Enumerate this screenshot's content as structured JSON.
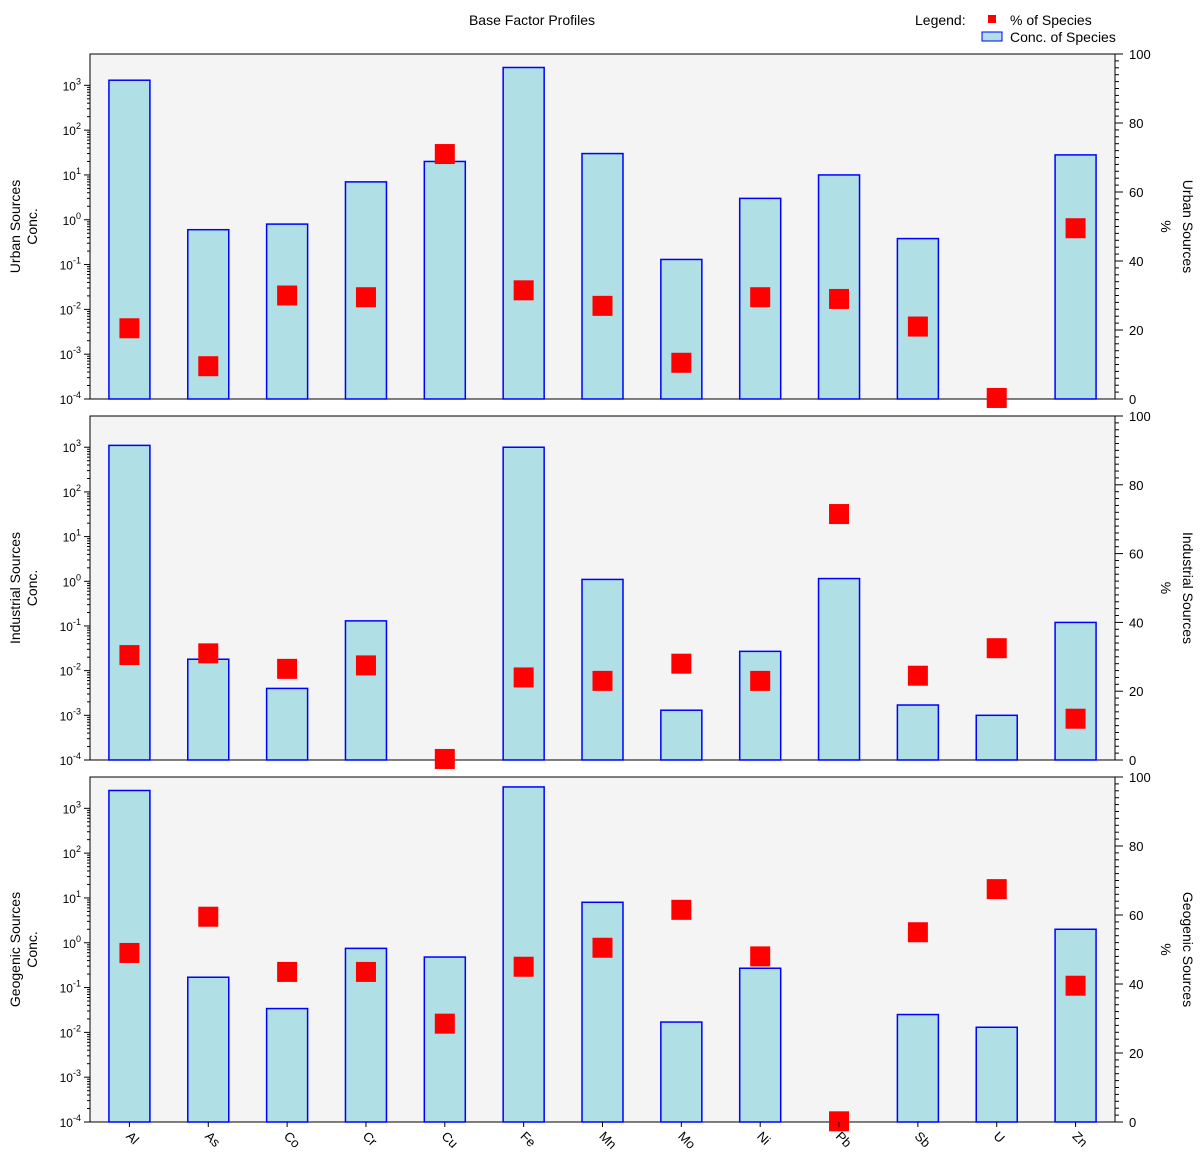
{
  "chart_data": {
    "type": "bar",
    "title": "Base Factor Profiles",
    "legend": {
      "label": "Legend:",
      "placement": "top-right",
      "entries": [
        {
          "name": "% of Species",
          "marker": "square",
          "color": "#ff0000"
        },
        {
          "name": "Conc. of Species",
          "marker": "bar",
          "color": "#b0dfe5",
          "edge": "#0000ff"
        }
      ]
    },
    "categories": [
      "Al",
      "As",
      "Co",
      "Cr",
      "Cu",
      "Fe",
      "Mn",
      "Mo",
      "Ni",
      "Pb",
      "Sb",
      "U",
      "Zn"
    ],
    "left_axis": {
      "scale": "log",
      "ylim": [
        0.0001,
        5000
      ],
      "ticks": [
        {
          "value": 0.0001,
          "base": "10",
          "exp": "-4"
        },
        {
          "value": 0.001,
          "base": "10",
          "exp": "-3"
        },
        {
          "value": 0.01,
          "base": "10",
          "exp": "-2"
        },
        {
          "value": 0.1,
          "base": "10",
          "exp": "-1"
        },
        {
          "value": 1,
          "base": "10",
          "exp": "0"
        },
        {
          "value": 10,
          "base": "10",
          "exp": "1"
        },
        {
          "value": 100,
          "base": "10",
          "exp": "2"
        },
        {
          "value": 1000,
          "base": "10",
          "exp": "3"
        }
      ]
    },
    "right_axis": {
      "scale": "linear",
      "ylim": [
        0,
        100
      ],
      "ticks": [
        "0",
        "20",
        "40",
        "60",
        "80",
        "100"
      ],
      "label": "%"
    },
    "panels": [
      {
        "name": "Urban Sources",
        "ylabel_left": [
          "Urban Sources",
          "Conc."
        ],
        "ylabel_right": "Urban Sources",
        "conc": [
          1300,
          0.6,
          0.8,
          7,
          20,
          2500,
          30,
          0.13,
          3,
          10,
          0.38,
          null,
          28
        ],
        "percent": [
          20.5,
          9.5,
          30,
          29.5,
          71,
          31.5,
          27,
          10.5,
          29.5,
          29,
          21,
          0.3,
          49.5
        ]
      },
      {
        "name": "Industrial Sources",
        "ylabel_left": [
          "Industrial Sources",
          "Conc."
        ],
        "ylabel_right": "Industrial Sources",
        "conc": [
          1100,
          0.018,
          0.004,
          0.13,
          null,
          1000,
          1.1,
          0.0013,
          0.027,
          1.15,
          0.0017,
          0.001,
          0.12
        ],
        "percent": [
          30.5,
          31,
          26.5,
          27.5,
          0.3,
          24,
          23,
          28,
          23,
          71.5,
          24.5,
          32.5,
          12
        ]
      },
      {
        "name": "Geogenic Sources",
        "ylabel_left": [
          "Geogenic Sources",
          "Conc."
        ],
        "ylabel_right": "Geogenic Sources",
        "conc": [
          2500,
          0.17,
          0.034,
          0.75,
          0.48,
          3000,
          8,
          0.017,
          0.27,
          null,
          0.025,
          0.013,
          2
        ],
        "percent": [
          49,
          59.5,
          43.5,
          43.5,
          28.5,
          45,
          50.5,
          61.5,
          48,
          0.2,
          55,
          67.5,
          39.5
        ]
      }
    ],
    "grid": false
  }
}
